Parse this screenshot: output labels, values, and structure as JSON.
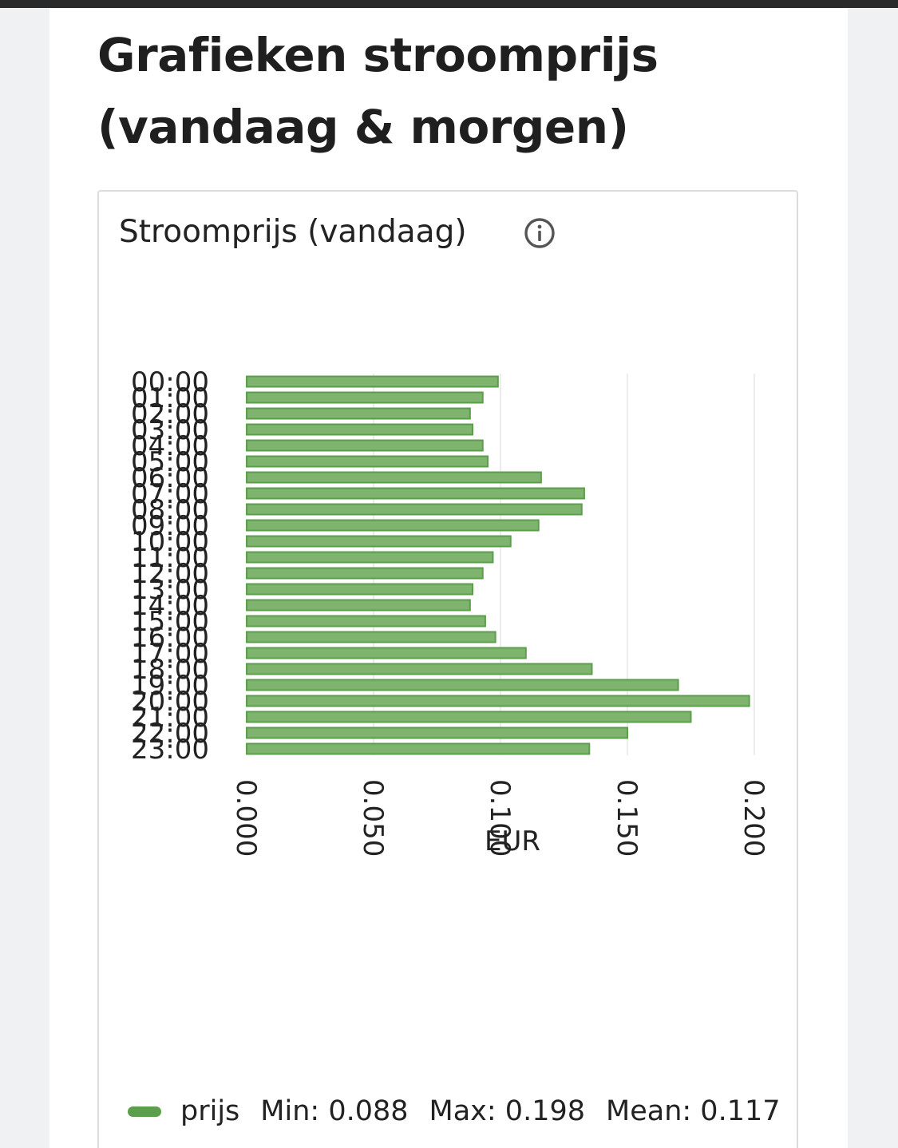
{
  "page": {
    "title": "Grafieken stroomprijs (vandaag & morgen)"
  },
  "panel": {
    "title": "Stroomprijs (vandaag)",
    "info_icon": "info-circle-icon"
  },
  "legend": {
    "series_name": "prijs",
    "min_text": "Min: 0.088",
    "max_text": "Max: 0.198",
    "mean_text": "Mean: 0.117"
  },
  "colors": {
    "bar_fill": "#7fb46f",
    "bar_stroke": "#5b9e4b",
    "grid": "#e6e6e6",
    "text": "#222222"
  },
  "chart_data": {
    "type": "bar",
    "orientation": "horizontal",
    "categories": [
      "00:00",
      "01:00",
      "02:00",
      "03:00",
      "04:00",
      "05:00",
      "06:00",
      "07:00",
      "08:00",
      "09:00",
      "10:00",
      "11:00",
      "12:00",
      "13:00",
      "14:00",
      "15:00",
      "16:00",
      "17:00",
      "18:00",
      "19:00",
      "20:00",
      "21:00",
      "22:00",
      "23:00"
    ],
    "series": [
      {
        "name": "prijs",
        "values": [
          0.099,
          0.093,
          0.088,
          0.089,
          0.093,
          0.095,
          0.116,
          0.133,
          0.132,
          0.115,
          0.104,
          0.097,
          0.093,
          0.089,
          0.088,
          0.094,
          0.098,
          0.11,
          0.136,
          0.17,
          0.198,
          0.175,
          0.15,
          0.135
        ]
      }
    ],
    "xlabel": "EUR",
    "xlim": [
      0,
      0.2
    ],
    "xticks": [
      "0.000",
      "0.050",
      "0.100",
      "0.150",
      "0.200"
    ],
    "grid": true
  }
}
